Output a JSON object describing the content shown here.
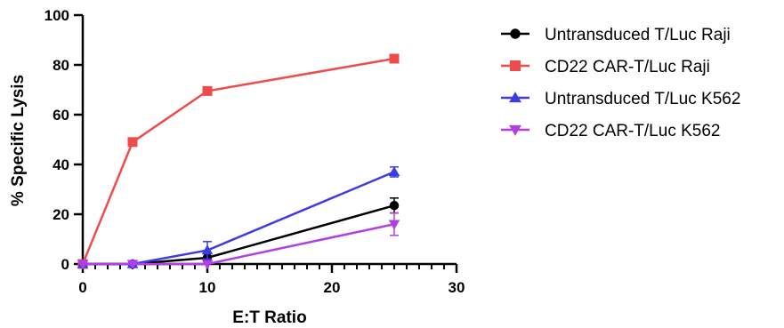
{
  "chart_data": {
    "type": "line",
    "xlabel": "E:T Ratio",
    "ylabel": "% Specific Lysis",
    "xlim": [
      0,
      30
    ],
    "ylim": [
      0,
      100
    ],
    "x_ticks": [
      0,
      10,
      20,
      30
    ],
    "y_ticks": [
      0,
      20,
      40,
      60,
      80,
      100
    ],
    "x_minor_step": 1,
    "grid": false,
    "legend_position": "right",
    "x": [
      0,
      4,
      10,
      25
    ],
    "series": [
      {
        "name": "Untransduced T/Luc Raji",
        "color": "#000000",
        "marker": "circle",
        "values": [
          0,
          0,
          2.5,
          23.5
        ],
        "errors": [
          0,
          0.5,
          0.5,
          3.0
        ]
      },
      {
        "name": "CD22 CAR-T/Luc Raji",
        "color": "#f04b4b",
        "marker": "square",
        "values": [
          0,
          49,
          69.5,
          82.5
        ],
        "errors": [
          1.5,
          0.5,
          0.5,
          0.5
        ]
      },
      {
        "name": "Untransduced T/Luc K562",
        "color": "#3c3ce6",
        "marker": "triangle-up",
        "values": [
          0,
          0,
          5.5,
          37
        ],
        "errors": [
          0,
          0.5,
          3.5,
          2.0
        ]
      },
      {
        "name": "CD22 CAR-T/Luc K562",
        "color": "#b040e6",
        "marker": "triangle-down",
        "values": [
          0,
          0,
          0,
          16
        ],
        "errors": [
          0,
          0,
          0,
          4.5
        ]
      }
    ]
  }
}
